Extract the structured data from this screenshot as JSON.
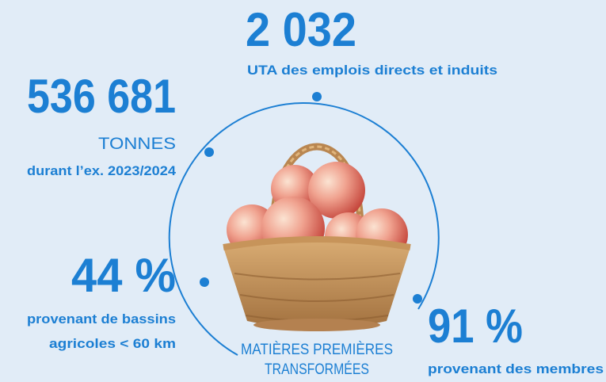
{
  "stats": [
    {
      "value": "2 032",
      "label": "UTA des emplois directs et induits"
    },
    {
      "value": "536 681",
      "unit": "TONNES",
      "label": "durant l’ex. 2023/2024"
    },
    {
      "value": "44 %",
      "label": [
        "provenant de bassins",
        "agricoles < 60 km"
      ]
    },
    {
      "value": "91 %",
      "label": "provenant des membres"
    }
  ],
  "center_label": [
    "MATIÈRES PREMIÈRES",
    "TRANSFORMÉES"
  ]
}
